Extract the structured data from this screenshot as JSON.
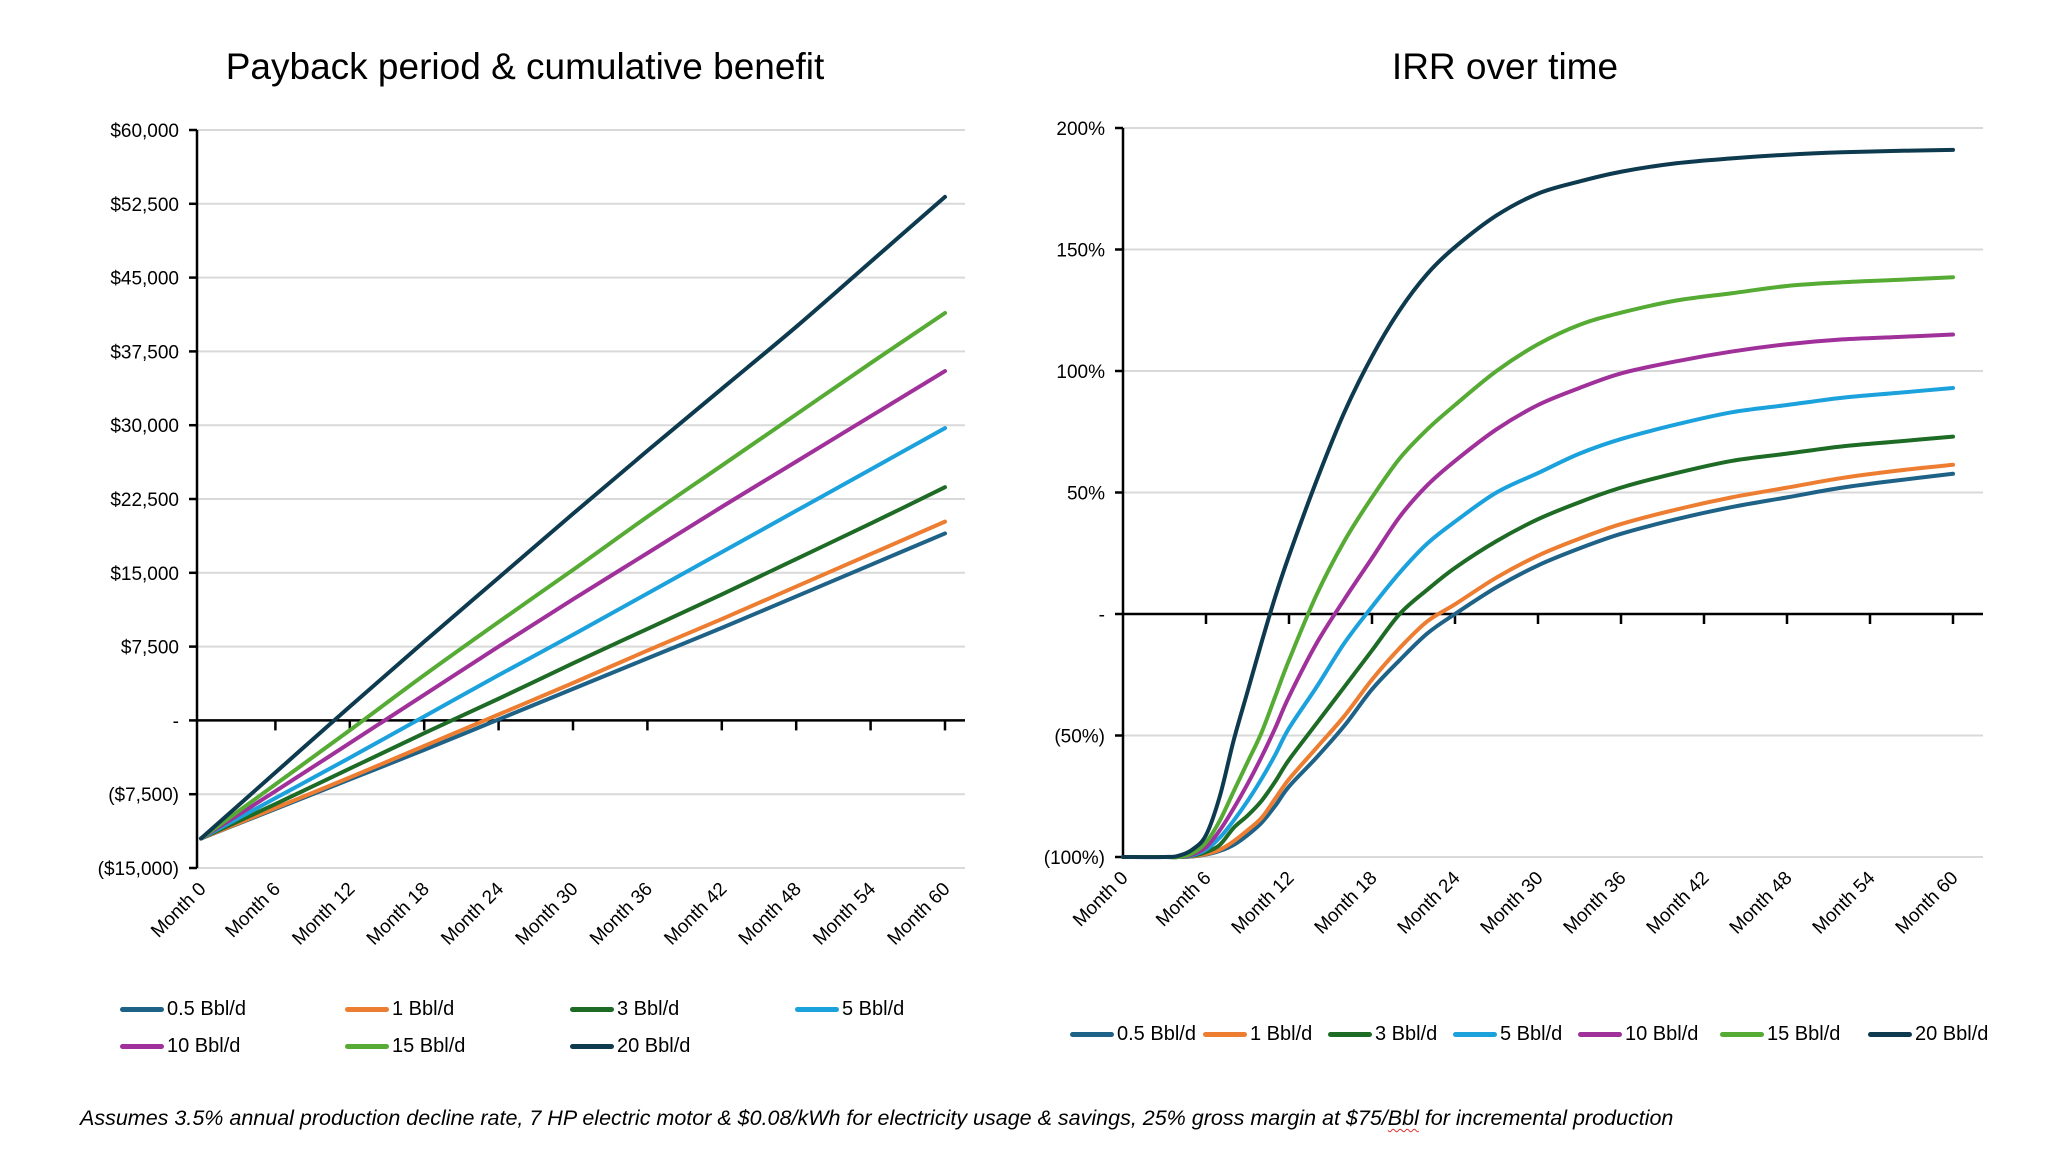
{
  "chart_data": [
    {
      "id": "payback",
      "type": "line",
      "title": "Payback period & cumulative benefit",
      "xlabel": "",
      "ylabel": "",
      "x_unit": "month",
      "x_ticks": [
        0,
        6,
        12,
        18,
        24,
        30,
        36,
        42,
        48,
        54,
        60
      ],
      "x_tick_labels": [
        "Month 0",
        "Month 6",
        "Month 12",
        "Month 18",
        "Month 24",
        "Month 30",
        "Month 36",
        "Month 42",
        "Month 48",
        "Month 54",
        "Month 60"
      ],
      "ylim": [
        -15000,
        60000
      ],
      "y_ticks": [
        -15000,
        -7500,
        0,
        7500,
        15000,
        22500,
        30000,
        37500,
        45000,
        52500,
        60000
      ],
      "y_tick_labels": [
        "($15,000)",
        "($7,500)",
        "-",
        "$7,500",
        "$15,000",
        "$22,500",
        "$30,000",
        "$37,500",
        "$45,000",
        "$52,500",
        "$60,000"
      ],
      "grid": true,
      "legend_position": "bottom",
      "x": [
        0,
        6,
        12,
        18,
        24,
        30,
        36,
        42,
        48,
        54,
        60
      ],
      "series": [
        {
          "name": "0.5 Bbl/d",
          "color": "#1F6287",
          "values": [
            -12000,
            -9000,
            -6000,
            -3000,
            100,
            3200,
            6300,
            9400,
            12600,
            15800,
            19000
          ]
        },
        {
          "name": "1 Bbl/d",
          "color": "#ED7D31",
          "values": [
            -12000,
            -8900,
            -5800,
            -2600,
            600,
            3800,
            7100,
            10300,
            13600,
            16900,
            20200
          ]
        },
        {
          "name": "3 Bbl/d",
          "color": "#1E6B26",
          "values": [
            -12000,
            -8500,
            -4900,
            -1300,
            2200,
            5800,
            9300,
            12800,
            16400,
            20000,
            23700
          ]
        },
        {
          "name": "5 Bbl/d",
          "color": "#1BA1DC",
          "values": [
            -12000,
            -7900,
            -3800,
            400,
            4600,
            8700,
            12900,
            17100,
            21300,
            25500,
            29700
          ]
        },
        {
          "name": "10 Bbl/d",
          "color": "#A0309A",
          "values": [
            -12000,
            -7200,
            -2300,
            2600,
            7500,
            12300,
            17000,
            21700,
            26300,
            30900,
            35500
          ]
        },
        {
          "name": "15 Bbl/d",
          "color": "#55AB33",
          "values": [
            -12000,
            -6500,
            -1000,
            4600,
            10000,
            15300,
            20700,
            25900,
            31100,
            36300,
            41400
          ]
        },
        {
          "name": "20 Bbl/d",
          "color": "#0D3A4E",
          "values": [
            -12000,
            -5300,
            1400,
            8000,
            14500,
            21000,
            27400,
            33700,
            40000,
            46600,
            53200
          ]
        }
      ]
    },
    {
      "id": "irr",
      "type": "line",
      "title": "IRR over time",
      "xlabel": "",
      "ylabel": "",
      "x_unit": "month",
      "x_ticks": [
        0,
        6,
        12,
        18,
        24,
        30,
        36,
        42,
        48,
        54,
        60
      ],
      "x_tick_labels": [
        "Month 0",
        "Month 6",
        "Month 12",
        "Month 18",
        "Month 24",
        "Month 30",
        "Month 36",
        "Month 42",
        "Month 48",
        "Month 54",
        "Month 60"
      ],
      "ylim": [
        -100,
        200
      ],
      "y_ticks": [
        -100,
        -50,
        0,
        50,
        100,
        150,
        200
      ],
      "y_tick_labels": [
        "(100%)",
        "(50%)",
        "-",
        "50%",
        "100%",
        "150%",
        "200%"
      ],
      "grid": true,
      "legend_position": "bottom",
      "x": [
        0,
        3,
        4,
        5,
        6,
        7,
        8,
        9,
        10,
        11,
        12,
        14,
        16,
        18,
        20,
        22,
        24,
        27,
        30,
        33,
        36,
        40,
        44,
        48,
        52,
        56,
        60
      ],
      "series": [
        {
          "name": "0.5 Bbl/d",
          "color": "#1F6287",
          "values": [
            -100,
            -100,
            -100,
            -99.8,
            -99,
            -97.5,
            -95,
            -91,
            -86,
            -79,
            -71,
            -59,
            -46,
            -31,
            -19,
            -8,
            0,
            11,
            20,
            27,
            33,
            39,
            44,
            48,
            52,
            55,
            57.7
          ]
        },
        {
          "name": "1 Bbl/d",
          "color": "#ED7D31",
          "values": [
            -100,
            -100,
            -100,
            -99.7,
            -98.8,
            -97,
            -93.5,
            -89,
            -84,
            -76,
            -68,
            -55,
            -42,
            -27,
            -14,
            -3,
            4,
            15,
            24,
            31,
            37,
            43,
            48,
            52,
            56,
            59,
            61.4
          ]
        },
        {
          "name": "3 Bbl/d",
          "color": "#1E6B26",
          "values": [
            -100,
            -100,
            -100,
            -99.5,
            -98,
            -95,
            -88,
            -83,
            -77,
            -69,
            -60,
            -45,
            -30,
            -15,
            0,
            10,
            19,
            30,
            39,
            46,
            52,
            58,
            63,
            66,
            69,
            71,
            73
          ]
        },
        {
          "name": "5 Bbl/d",
          "color": "#1BA1DC",
          "values": [
            -100,
            -100,
            -100,
            -99.3,
            -97,
            -92,
            -85,
            -77,
            -68,
            -58,
            -47,
            -30,
            -12,
            3,
            17,
            29,
            38,
            50,
            58,
            66,
            72,
            78,
            83,
            86,
            89,
            91,
            93
          ]
        },
        {
          "name": "10 Bbl/d",
          "color": "#A0309A",
          "values": [
            -100,
            -100,
            -100,
            -99,
            -96,
            -89,
            -80,
            -70,
            -59,
            -47,
            -34,
            -12,
            6,
            23,
            40,
            53,
            63,
            76,
            86,
            93,
            99,
            104,
            108,
            111,
            113,
            114,
            115
          ]
        },
        {
          "name": "15 Bbl/d",
          "color": "#55AB33",
          "values": [
            -100,
            -100,
            -100,
            -98.5,
            -94,
            -85,
            -73,
            -61,
            -49,
            -34,
            -19,
            8,
            30,
            48,
            64,
            76,
            86,
            100,
            111,
            119,
            124,
            129,
            132,
            135,
            136.5,
            137.5,
            138.6
          ]
        },
        {
          "name": "20 Bbl/d",
          "color": "#0D3A4E",
          "values": [
            -100,
            -100,
            -99.5,
            -97,
            -91,
            -75,
            -52,
            -32,
            -12,
            7,
            24,
            55,
            83,
            106,
            125,
            140,
            151,
            164,
            173,
            178,
            182,
            185.5,
            187.5,
            189,
            190,
            190.6,
            191
          ]
        }
      ]
    }
  ],
  "legend_left": [
    "0.5 Bbl/d",
    "1 Bbl/d",
    "3 Bbl/d",
    "5 Bbl/d",
    "10 Bbl/d",
    "15 Bbl/d",
    "20 Bbl/d"
  ],
  "legend_right": [
    "0.5 Bbl/d",
    "1 Bbl/d",
    "3 Bbl/d",
    "5 Bbl/d",
    "10 Bbl/d",
    "15 Bbl/d",
    "20 Bbl/d"
  ],
  "footnote": {
    "before": "Assumes 3.5% annual production decline rate, 7 HP electric motor & $0.08/kWh for electricity usage & savings, 25% gross margin at $75/",
    "flagged_word": "Bbl",
    "after": " for incremental production"
  }
}
